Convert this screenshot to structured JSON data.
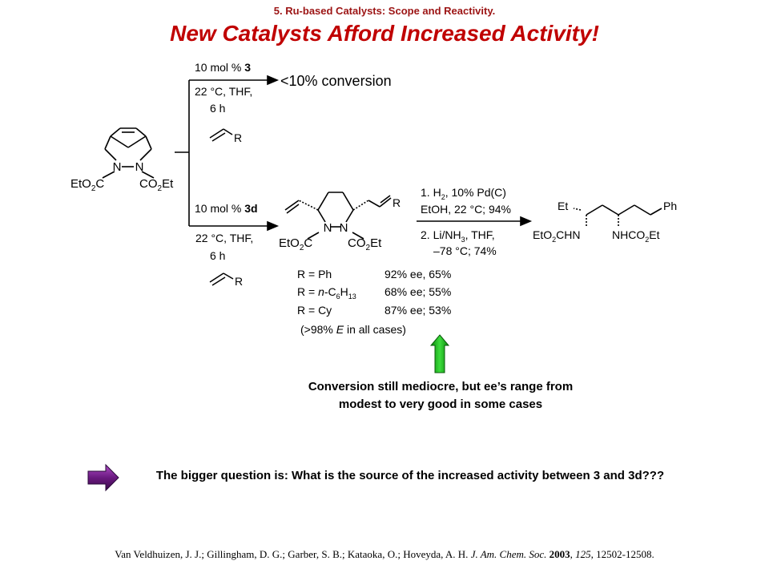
{
  "slide": {
    "subtitle": "5. Ru-based Catalysts: Scope and Reactivity.",
    "title": "New Catalysts Afford Increased Activity!"
  },
  "scheme": {
    "substrate": {
      "left_ester": "EtO2C",
      "right_ester": "CO2Et",
      "n_left": "N",
      "n_right": "N"
    },
    "upper_path": {
      "catalyst": "10 mol % 3",
      "cond1": "22 °C, THF,",
      "cond2": "6 h",
      "olefin_r": "R",
      "result": "<10% conversion"
    },
    "lower_path": {
      "catalyst": "10 mol % 3d",
      "cond1": "22 °C, THF,",
      "cond2": "6 h",
      "olefin_r": "R"
    },
    "product": {
      "r": "R",
      "left_ester": "EtO2C",
      "right_ester": "CO2Et",
      "n_left": "N",
      "n_right": "N"
    },
    "step_conditions": {
      "line1": "1.  H2, 10% Pd(C)",
      "line2": "EtOH, 22 °C; 94%",
      "line3": "2.  Li/NH3, THF,",
      "line4": "–78 °C; 74%"
    },
    "final_product": {
      "et": "Et",
      "ph": "Ph",
      "left": "EtO2CHN",
      "right": "NHCO2Et"
    },
    "results": [
      {
        "r": "R = Ph",
        "value": "92% ee, 65%"
      },
      {
        "r": "R = n-C6H13",
        "value": "68% ee; 55%"
      },
      {
        "r": "R = Cy",
        "value": "87% ee; 53%"
      }
    ],
    "selectivity": "(>98% E in all cases)"
  },
  "conclusion": "Conversion still mediocre, but ee’s range from modest to very good in some cases",
  "question": "The bigger question is: What is the source of the increased activity between 3 and 3d???",
  "citation": {
    "authors": "Van Veldhuizen, J. J.; Gillingham, D. G.; Garber, S. B.; Kataoka, O.; Hoveyda, A. H.",
    "journal": "J. Am. Chem. Soc.",
    "year": "2003",
    "volume": "125",
    "pages": "12502-12508."
  },
  "colors": {
    "title": "#c00000",
    "subtitle": "#9c1414",
    "up_arrow": "#22c022",
    "right_arrow": "#7a1e8c"
  }
}
